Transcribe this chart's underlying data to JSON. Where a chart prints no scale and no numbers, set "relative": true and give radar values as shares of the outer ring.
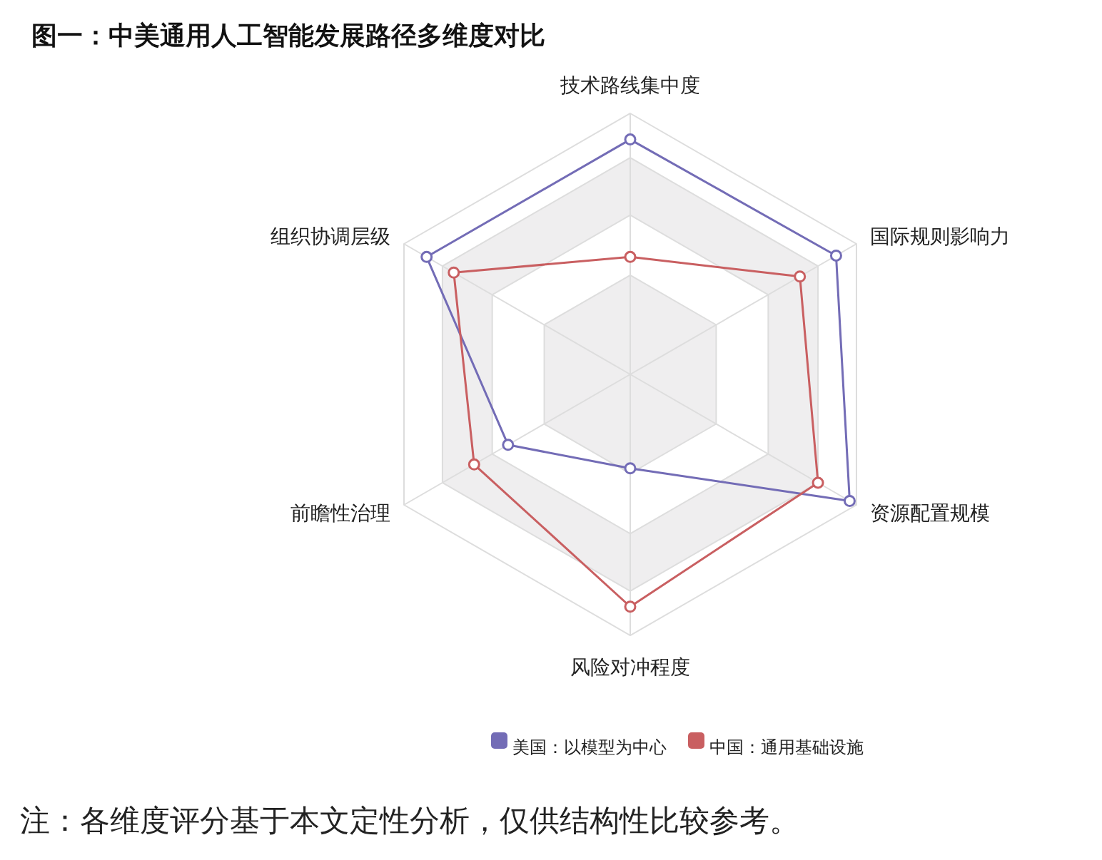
{
  "chart_data": {
    "type": "radar",
    "title": "图一：中美通用人工智能发展路径多维度对比",
    "categories": [
      "技术路线集中度",
      "国际规则影响力",
      "资源配置规模",
      "风险对冲程度",
      "前瞻性治理",
      "组织协调层级"
    ],
    "relative": true,
    "series": [
      {
        "name": "美国：以模型为中心",
        "color": "#736cb6",
        "values": [
          0.9,
          0.91,
          0.97,
          0.36,
          0.54,
          0.9
        ]
      },
      {
        "name": "中国：通用基础设施",
        "color": "#c95f61",
        "values": [
          0.45,
          0.75,
          0.83,
          0.89,
          0.69,
          0.78
        ]
      }
    ],
    "marker": "circle",
    "legend": "bottom",
    "annotations": [
      "注：各维度评分基于本文定性分析，仅供结构性比较参考。"
    ]
  }
}
